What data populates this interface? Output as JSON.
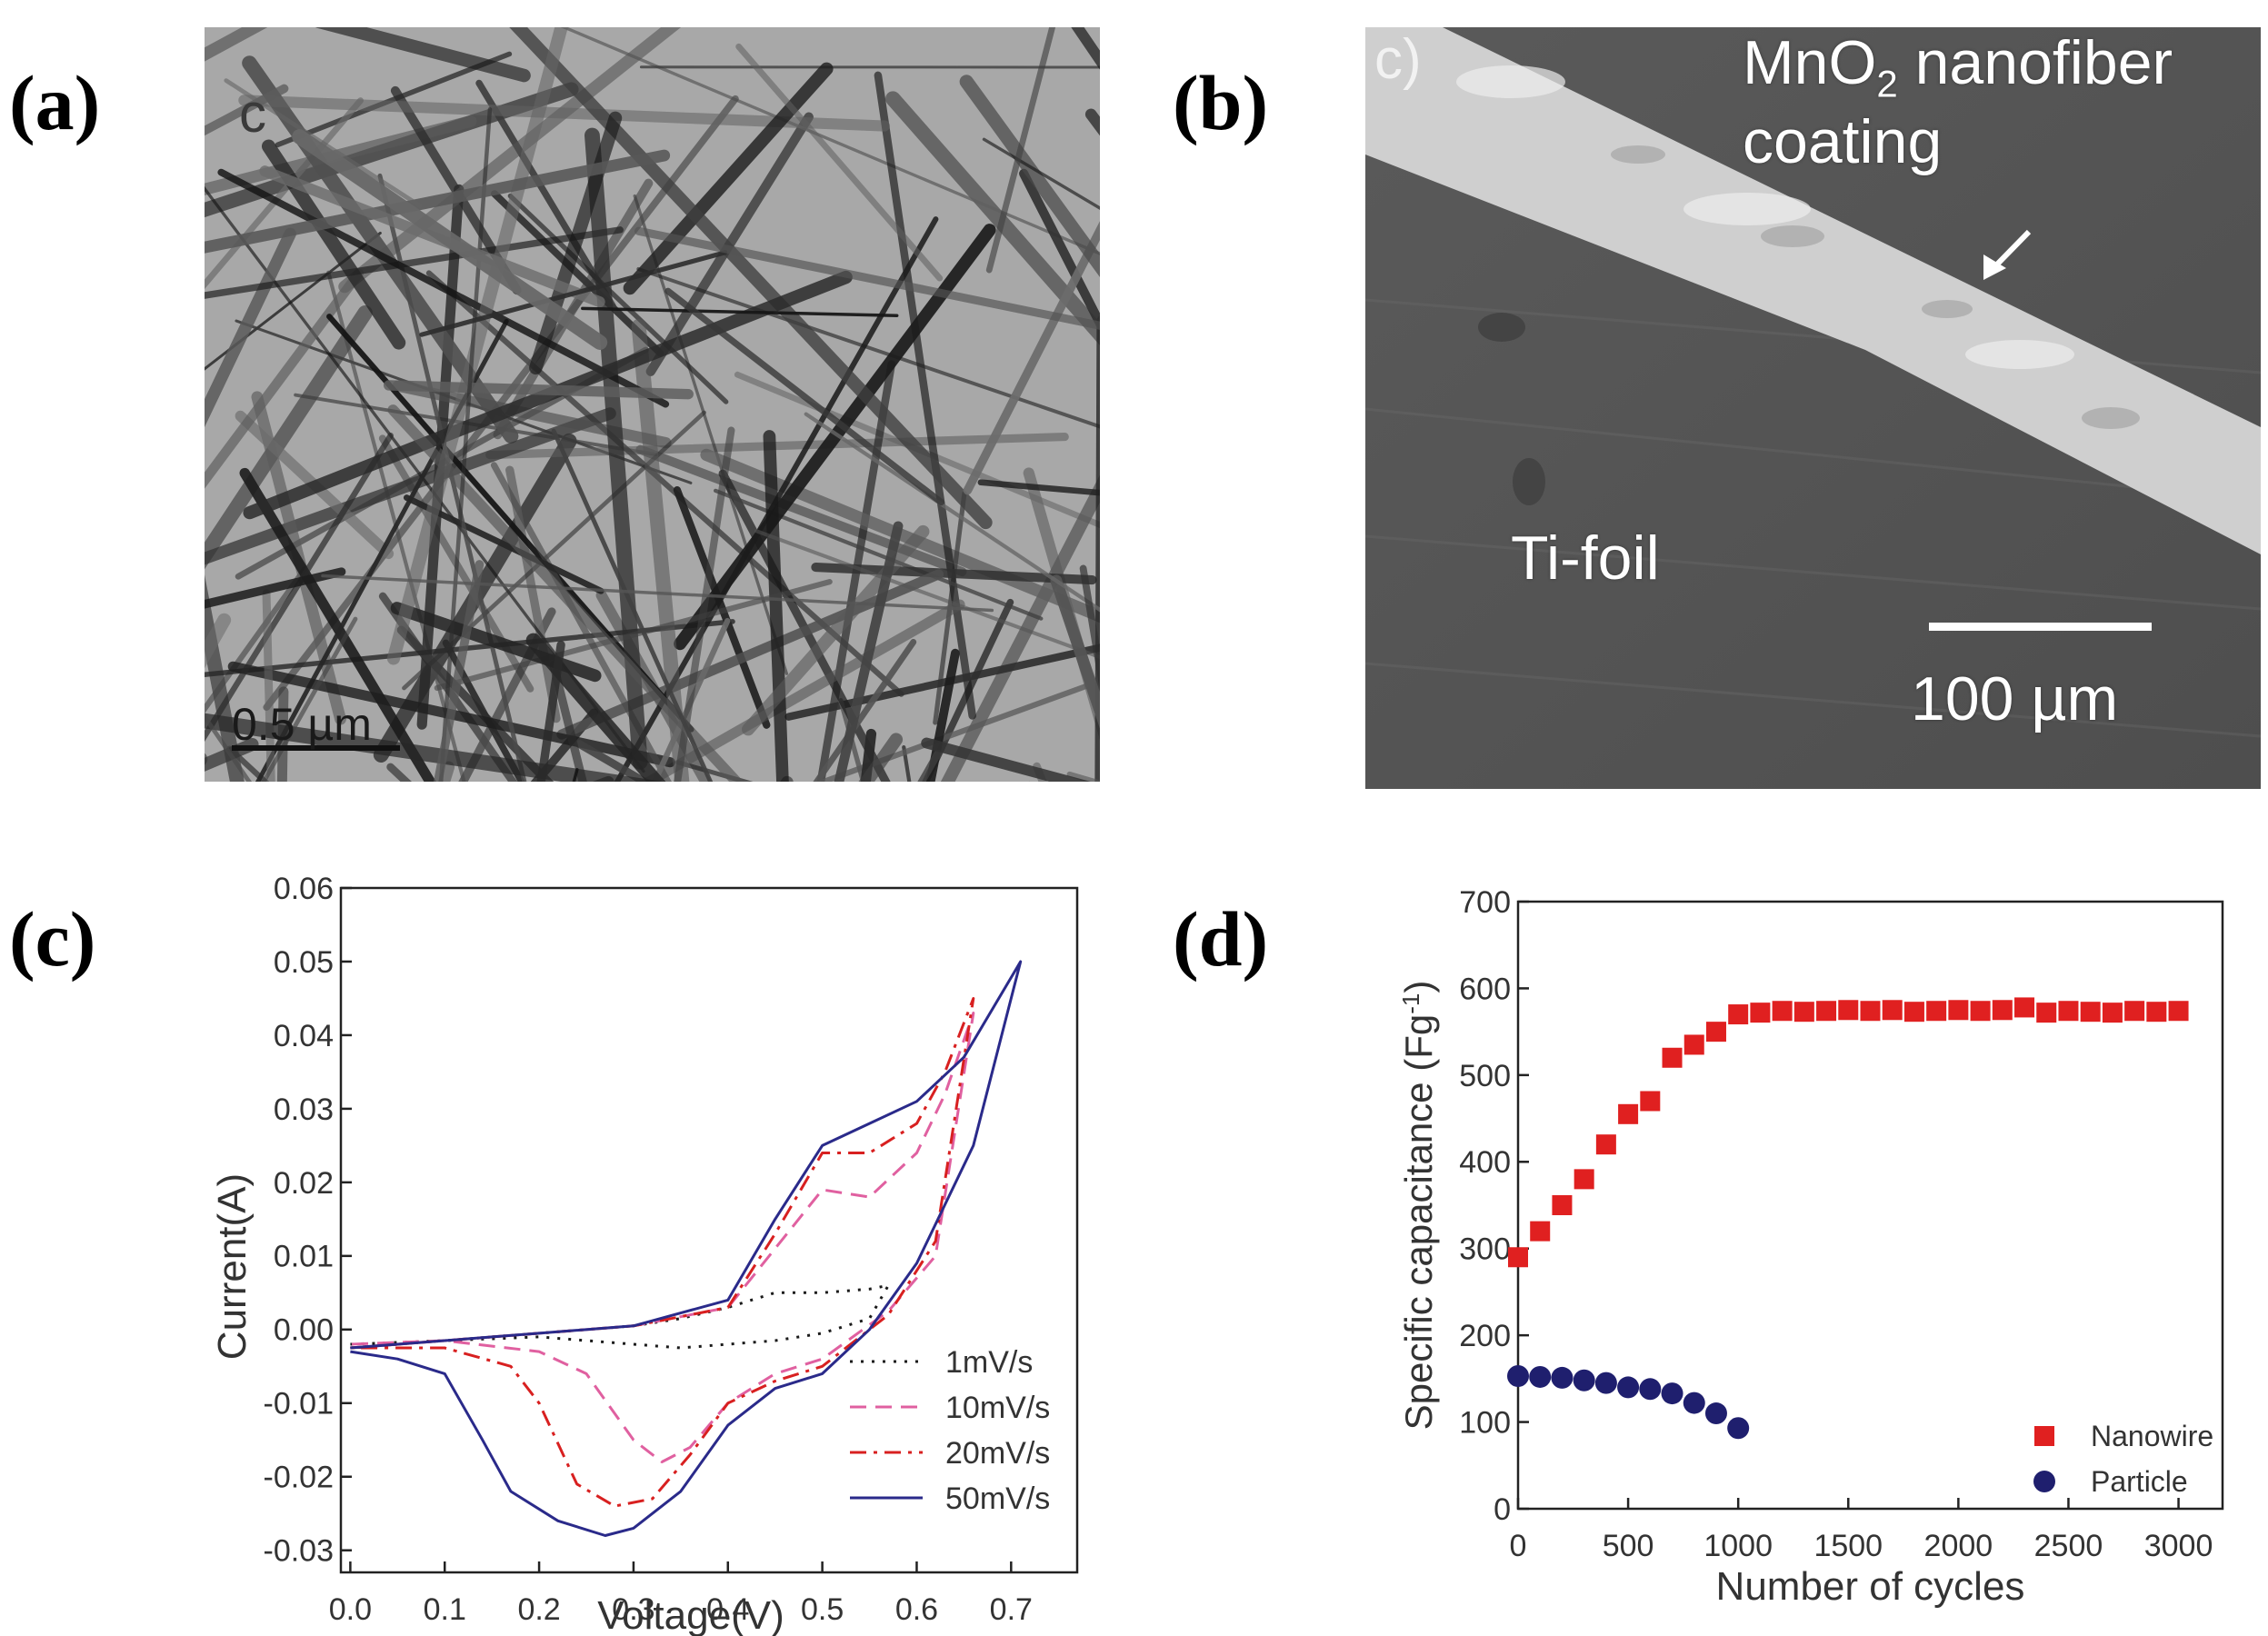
{
  "figure": {
    "panel_labels": [
      "(a)",
      "(b)",
      "(c)",
      "(d)"
    ]
  },
  "panel_a": {
    "corner_letter": "c",
    "scale_bar_label": "0.5 µm"
  },
  "panel_b": {
    "corner_letter": "c)",
    "coating_label_line1": "MnO",
    "coating_label_sub": "2",
    "coating_label_line1_rest": " nanofiber",
    "coating_label_line2": "coating",
    "substrate_label": "Ti-foil",
    "scale_bar_label": "100 µm"
  },
  "colors": {
    "black": "#1a1a1a",
    "pink": "#e060a0",
    "red": "#d82020",
    "navy": "#2a2a8a",
    "red_marker": "#e02020",
    "navy_marker": "#1f1f6e"
  },
  "chart_data": [
    {
      "id": "c",
      "type": "line",
      "title": "",
      "xlabel": "Voltage(V)",
      "ylabel": "Current(A)",
      "xlim": [
        -0.01,
        0.77
      ],
      "ylim": [
        -0.033,
        0.06
      ],
      "xticks": [
        0.0,
        0.1,
        0.2,
        0.3,
        0.4,
        0.5,
        0.6,
        0.7
      ],
      "xtick_labels": [
        "0.0",
        "0.1",
        "0.2",
        "0.3",
        "0.4",
        "0.5",
        "0.6",
        "0.7"
      ],
      "yticks": [
        -0.03,
        -0.02,
        -0.01,
        0.0,
        0.01,
        0.02,
        0.03,
        0.04,
        0.05,
        0.06
      ],
      "ytick_labels": [
        "-0.03",
        "-0.02",
        "-0.01",
        "0.00",
        "0.01",
        "0.02",
        "0.03",
        "0.04",
        "0.05",
        "0.06"
      ],
      "legend_position": "bottom-right",
      "series": [
        {
          "name": "1mV/s",
          "style": "dotted",
          "color": "#1a1a1a",
          "x": [
            0.0,
            0.1,
            0.2,
            0.3,
            0.35,
            0.4,
            0.45,
            0.5,
            0.55,
            0.57,
            0.55,
            0.5,
            0.45,
            0.4,
            0.35,
            0.3,
            0.2,
            0.1,
            0.0
          ],
          "y": [
            -0.0025,
            -0.0015,
            -0.0005,
            0.0005,
            0.0015,
            0.003,
            0.005,
            0.005,
            0.0055,
            0.006,
            0.0015,
            -0.0005,
            -0.0015,
            -0.002,
            -0.0025,
            -0.002,
            -0.001,
            -0.0015,
            -0.002
          ]
        },
        {
          "name": "10mV/s",
          "style": "dashed",
          "color": "#e060a0",
          "x": [
            0.0,
            0.1,
            0.2,
            0.3,
            0.4,
            0.45,
            0.5,
            0.55,
            0.6,
            0.63,
            0.66,
            0.62,
            0.57,
            0.5,
            0.45,
            0.4,
            0.36,
            0.33,
            0.3,
            0.25,
            0.2,
            0.1,
            0.0
          ],
          "y": [
            -0.0025,
            -0.0015,
            -0.0005,
            0.0005,
            0.003,
            0.011,
            0.019,
            0.018,
            0.024,
            0.032,
            0.043,
            0.01,
            0.0025,
            -0.004,
            -0.006,
            -0.01,
            -0.016,
            -0.018,
            -0.015,
            -0.006,
            -0.003,
            -0.0015,
            -0.002
          ]
        },
        {
          "name": "20mV/s",
          "style": "dashdot",
          "color": "#d82020",
          "x": [
            0.0,
            0.1,
            0.2,
            0.3,
            0.4,
            0.45,
            0.5,
            0.55,
            0.6,
            0.63,
            0.66,
            0.62,
            0.57,
            0.5,
            0.45,
            0.4,
            0.36,
            0.32,
            0.28,
            0.24,
            0.2,
            0.17,
            0.1,
            0.0
          ],
          "y": [
            -0.0025,
            -0.0015,
            -0.0005,
            0.0005,
            0.003,
            0.013,
            0.024,
            0.024,
            0.028,
            0.035,
            0.045,
            0.012,
            0.002,
            -0.005,
            -0.007,
            -0.01,
            -0.017,
            -0.023,
            -0.024,
            -0.021,
            -0.01,
            -0.005,
            -0.0025,
            -0.0025
          ]
        },
        {
          "name": "50mV/s",
          "style": "solid",
          "color": "#2a2a8a",
          "x": [
            0.0,
            0.1,
            0.2,
            0.3,
            0.4,
            0.45,
            0.5,
            0.55,
            0.6,
            0.65,
            0.71,
            0.66,
            0.6,
            0.55,
            0.5,
            0.45,
            0.4,
            0.35,
            0.3,
            0.27,
            0.22,
            0.17,
            0.14,
            0.1,
            0.05,
            0.0
          ],
          "y": [
            -0.0025,
            -0.0015,
            -0.0005,
            0.0005,
            0.004,
            0.015,
            0.025,
            0.028,
            0.031,
            0.037,
            0.05,
            0.025,
            0.009,
            0.0,
            -0.006,
            -0.008,
            -0.013,
            -0.022,
            -0.027,
            -0.028,
            -0.026,
            -0.022,
            -0.015,
            -0.006,
            -0.004,
            -0.003
          ]
        }
      ]
    },
    {
      "id": "d",
      "type": "scatter",
      "title": "",
      "xlabel": "Number of cycles",
      "ylabel": "Specific capacitance (Fg",
      "ylabel_superscript": "-1",
      "ylabel_tail": ")",
      "xlim": [
        0,
        3200
      ],
      "ylim": [
        0,
        700
      ],
      "xticks": [
        0,
        500,
        1000,
        1500,
        2000,
        2500,
        3000
      ],
      "xtick_labels": [
        "0",
        "500",
        "1000",
        "1500",
        "2000",
        "2500",
        "3000"
      ],
      "yticks": [
        0,
        100,
        200,
        300,
        400,
        500,
        600,
        700
      ],
      "ytick_labels": [
        "0",
        "100",
        "200",
        "300",
        "400",
        "500",
        "600",
        "700"
      ],
      "legend_position": "bottom-right",
      "series": [
        {
          "name": "Nanowire",
          "marker": "square",
          "color": "#e02020",
          "x": [
            0,
            100,
            200,
            300,
            400,
            500,
            600,
            700,
            800,
            900,
            1000,
            1100,
            1200,
            1300,
            1400,
            1500,
            1600,
            1700,
            1800,
            1900,
            2000,
            2100,
            2200,
            2300,
            2400,
            2500,
            2600,
            2700,
            2800,
            2900,
            3000
          ],
          "y": [
            290,
            320,
            350,
            380,
            420,
            455,
            470,
            520,
            535,
            550,
            570,
            572,
            574,
            573,
            574,
            575,
            574,
            575,
            573,
            574,
            575,
            574,
            575,
            578,
            572,
            574,
            573,
            572,
            574,
            573,
            574
          ]
        },
        {
          "name": "Particle",
          "marker": "circle",
          "color": "#1f1f6e",
          "x": [
            0,
            100,
            200,
            300,
            400,
            500,
            600,
            700,
            800,
            900,
            1000
          ],
          "y": [
            153,
            152,
            151,
            148,
            145,
            140,
            138,
            133,
            122,
            110,
            93
          ]
        }
      ]
    }
  ]
}
